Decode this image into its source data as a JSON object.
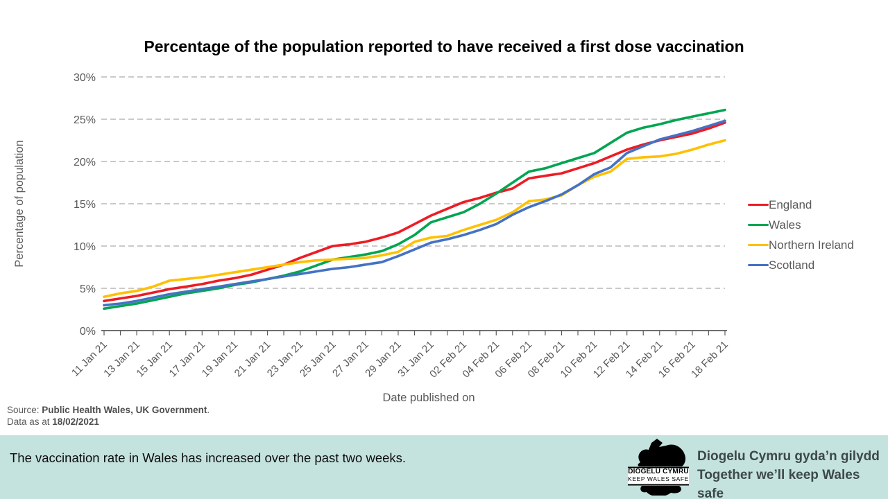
{
  "chart_data": {
    "type": "line",
    "title": "Percentage of the population reported to have received a first dose vaccination",
    "xlabel": "Date published on",
    "ylabel": "Percentage of population",
    "ylim": [
      0,
      30
    ],
    "ytick_step": 5,
    "ytick_suffix": "%",
    "grid": "horizontal-dashed",
    "legend_position": "right",
    "x_label_every": 2,
    "x": [
      "11 Jan 21",
      "12 Jan 21",
      "13 Jan 21",
      "14 Jan 21",
      "15 Jan 21",
      "16 Jan 21",
      "17 Jan 21",
      "18 Jan 21",
      "19 Jan 21",
      "20 Jan 21",
      "21 Jan 21",
      "22 Jan 21",
      "23 Jan 21",
      "24 Jan 21",
      "25 Jan 21",
      "26 Jan 21",
      "27 Jan 21",
      "28 Jan 21",
      "29 Jan 21",
      "30 Jan 21",
      "31 Jan 21",
      "01 Feb 21",
      "02 Feb 21",
      "03 Feb 21",
      "04 Feb 21",
      "05 Feb 21",
      "06 Feb 21",
      "07 Feb 21",
      "08 Feb 21",
      "09 Feb 21",
      "10 Feb 21",
      "11 Feb 21",
      "12 Feb 21",
      "13 Feb 21",
      "14 Feb 21",
      "15 Feb 21",
      "16 Feb 21",
      "17 Feb 21",
      "18 Feb 21"
    ],
    "series": [
      {
        "name": "England",
        "color": "#ED1C24",
        "values": [
          3.5,
          3.8,
          4.1,
          4.5,
          4.9,
          5.2,
          5.5,
          5.9,
          6.2,
          6.6,
          7.2,
          7.8,
          8.6,
          9.3,
          10.0,
          10.2,
          10.5,
          11.0,
          11.6,
          12.6,
          13.6,
          14.4,
          15.2,
          15.7,
          16.3,
          16.8,
          18.0,
          18.3,
          18.6,
          19.2,
          19.8,
          20.6,
          21.4,
          22.0,
          22.5,
          22.9,
          23.3,
          23.9,
          24.6
        ]
      },
      {
        "name": "Wales",
        "color": "#00A551",
        "values": [
          2.6,
          2.9,
          3.2,
          3.6,
          4.0,
          4.4,
          4.7,
          5.0,
          5.4,
          5.7,
          6.1,
          6.5,
          7.0,
          7.7,
          8.4,
          8.7,
          9.0,
          9.4,
          10.2,
          11.3,
          12.8,
          13.4,
          14.0,
          15.0,
          16.2,
          17.5,
          18.8,
          19.2,
          19.8,
          20.4,
          21.0,
          22.2,
          23.4,
          24.0,
          24.4,
          24.9,
          25.3,
          25.7,
          26.1
        ]
      },
      {
        "name": "Northern Ireland",
        "color": "#FFC000",
        "values": [
          4.0,
          4.4,
          4.7,
          5.2,
          5.9,
          6.1,
          6.3,
          6.6,
          6.9,
          7.2,
          7.5,
          7.8,
          8.1,
          8.3,
          8.4,
          8.5,
          8.6,
          8.9,
          9.3,
          10.5,
          11.0,
          11.2,
          11.9,
          12.5,
          13.1,
          14.0,
          15.3,
          15.5,
          16.0,
          17.2,
          18.2,
          18.8,
          20.3,
          20.5,
          20.6,
          20.9,
          21.4,
          22.0,
          22.5
        ]
      },
      {
        "name": "Scotland",
        "color": "#4472C4",
        "values": [
          3.0,
          3.2,
          3.5,
          3.9,
          4.3,
          4.6,
          4.9,
          5.2,
          5.5,
          5.8,
          6.1,
          6.4,
          6.7,
          7.0,
          7.3,
          7.5,
          7.8,
          8.1,
          8.8,
          9.6,
          10.4,
          10.8,
          11.3,
          11.9,
          12.6,
          13.7,
          14.6,
          15.3,
          16.1,
          17.2,
          18.5,
          19.3,
          21.0,
          21.8,
          22.6,
          23.1,
          23.6,
          24.2,
          24.8
        ]
      }
    ]
  },
  "source": {
    "line1_prefix": "Source: ",
    "line1_bold": "Public Health Wales, UK Government",
    "line1_suffix": ".",
    "line2_prefix": "Data as at ",
    "line2_bold": "18/02/2021"
  },
  "footer": {
    "message": "The vaccination rate in Wales has increased over the past two weeks.",
    "logo_line1": "DIOGELU CYMRU",
    "logo_line2": "KEEP WALES SAFE",
    "tagline_welsh": "Diogelu Cymru gyda’n gilydd",
    "tagline_english": "Together we’ll keep Wales safe",
    "banner_color": "#c4e2de"
  }
}
